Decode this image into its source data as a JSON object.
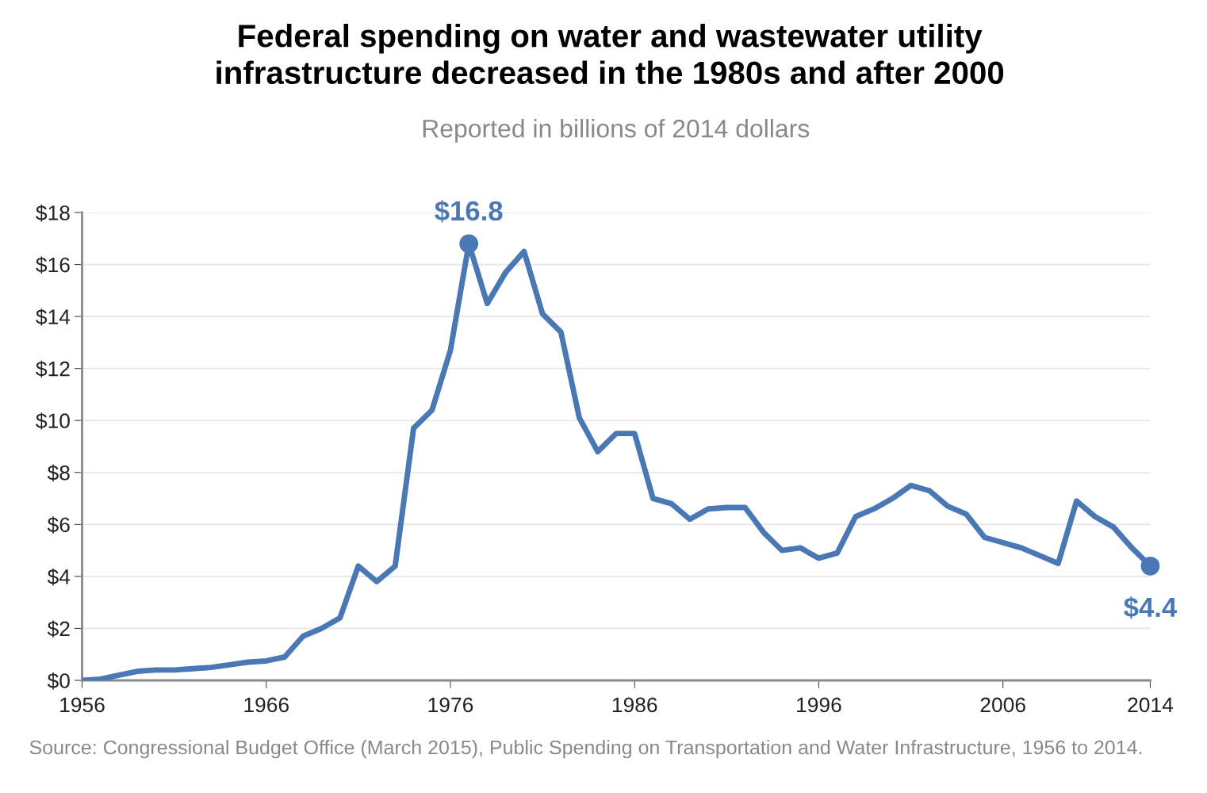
{
  "chart_data": {
    "type": "line",
    "title": "Federal spending on water and wastewater utility\ninfrastructure decreased in the 1980s and after 2000",
    "subtitle": "Reported in billions of 2014 dollars",
    "x": [
      1956,
      1957,
      1958,
      1959,
      1960,
      1961,
      1962,
      1963,
      1964,
      1965,
      1966,
      1967,
      1968,
      1969,
      1970,
      1971,
      1972,
      1973,
      1974,
      1975,
      1976,
      1977,
      1978,
      1979,
      1980,
      1981,
      1982,
      1983,
      1984,
      1985,
      1986,
      1987,
      1988,
      1989,
      1990,
      1991,
      1992,
      1993,
      1994,
      1995,
      1996,
      1997,
      1998,
      1999,
      2000,
      2001,
      2002,
      2003,
      2004,
      2005,
      2006,
      2007,
      2008,
      2009,
      2010,
      2011,
      2012,
      2013,
      2014
    ],
    "series": [
      {
        "color": "#4a78b5",
        "marker": "none",
        "values": [
          0.0,
          0.05,
          0.2,
          0.35,
          0.4,
          0.4,
          0.45,
          0.5,
          0.6,
          0.7,
          0.75,
          0.9,
          1.7,
          2.0,
          2.4,
          4.4,
          3.8,
          4.4,
          9.7,
          10.4,
          12.7,
          16.8,
          14.5,
          15.7,
          16.5,
          14.1,
          13.4,
          10.1,
          8.8,
          9.5,
          9.5,
          7.0,
          6.8,
          6.2,
          6.6,
          6.65,
          6.65,
          5.7,
          5.0,
          5.1,
          4.7,
          4.9,
          6.3,
          6.6,
          7.0,
          7.5,
          7.3,
          6.7,
          6.4,
          5.5,
          5.3,
          5.1,
          4.8,
          4.5,
          6.9,
          6.3,
          5.9,
          5.1,
          4.4
        ]
      },
      {
        "type": "scatter",
        "color": "#4a78b5",
        "marker": "circle",
        "x": [
          1977,
          2014
        ],
        "values": [
          16.8,
          4.4
        ]
      }
    ],
    "xlim": [
      1956,
      2014
    ],
    "xticks": [
      1956,
      1966,
      1976,
      1986,
      1996,
      2006,
      2014
    ],
    "ylim": [
      0,
      18
    ],
    "yticks": [
      {
        "value": 0,
        "label": "$0"
      },
      {
        "value": 2,
        "label": "$2"
      },
      {
        "value": 4,
        "label": "$4"
      },
      {
        "value": 6,
        "label": "$6"
      },
      {
        "value": 8,
        "label": "$8"
      },
      {
        "value": 10,
        "label": "$10"
      },
      {
        "value": 12,
        "label": "$12"
      },
      {
        "value": 14,
        "label": "$14"
      },
      {
        "value": 16,
        "label": "$16"
      },
      {
        "value": 18,
        "label": "$18"
      }
    ],
    "grid": "y",
    "line_style": "solid",
    "annotations": [
      {
        "text": "$16.8",
        "x": 1977,
        "y": 16.8
      },
      {
        "text": "$4.4",
        "x": 2014,
        "y": 4.4
      },
      "Source: Congressional Budget Office (March 2015), Public Spending on Transportation and Water Infrastructure, 1956 to 2014."
    ]
  }
}
